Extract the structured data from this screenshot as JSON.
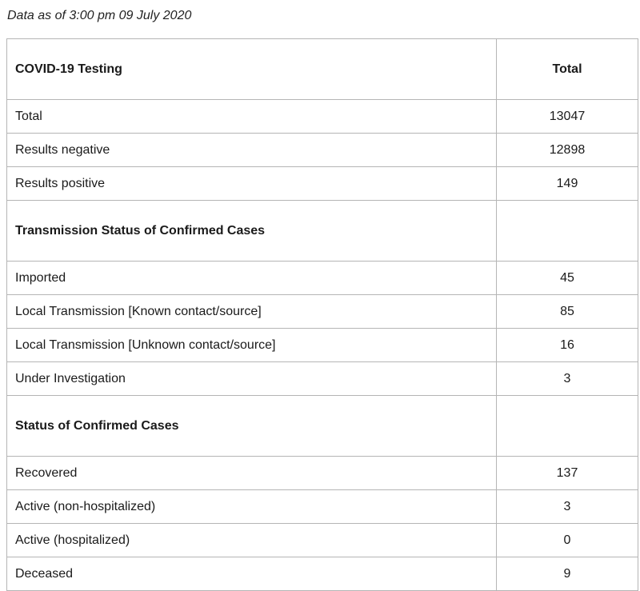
{
  "timestamp": "Data as of 3:00 pm 09 July 2020",
  "table": {
    "header": {
      "label": "COVID-19 Testing",
      "value": "Total"
    },
    "testing": [
      {
        "label": "Total",
        "value": "13047"
      },
      {
        "label": "Results negative",
        "value": "12898"
      },
      {
        "label": "Results positive",
        "value": "149"
      }
    ],
    "transmission_heading": "Transmission Status of Confirmed Cases",
    "transmission": [
      {
        "label": "Imported",
        "value": "45"
      },
      {
        "label": "Local Transmission [Known contact/source]",
        "value": "85"
      },
      {
        "label": "Local Transmission [Unknown contact/source]",
        "value": "16"
      },
      {
        "label": "Under Investigation",
        "value": "3"
      }
    ],
    "status_heading": "Status of Confirmed Cases",
    "status": [
      {
        "label": "Recovered",
        "value": "137"
      },
      {
        "label": "Active (non-hospitalized)",
        "value": "3"
      },
      {
        "label": "Active (hospitalized)",
        "value": "0"
      },
      {
        "label": "Deceased",
        "value": "9"
      }
    ]
  }
}
